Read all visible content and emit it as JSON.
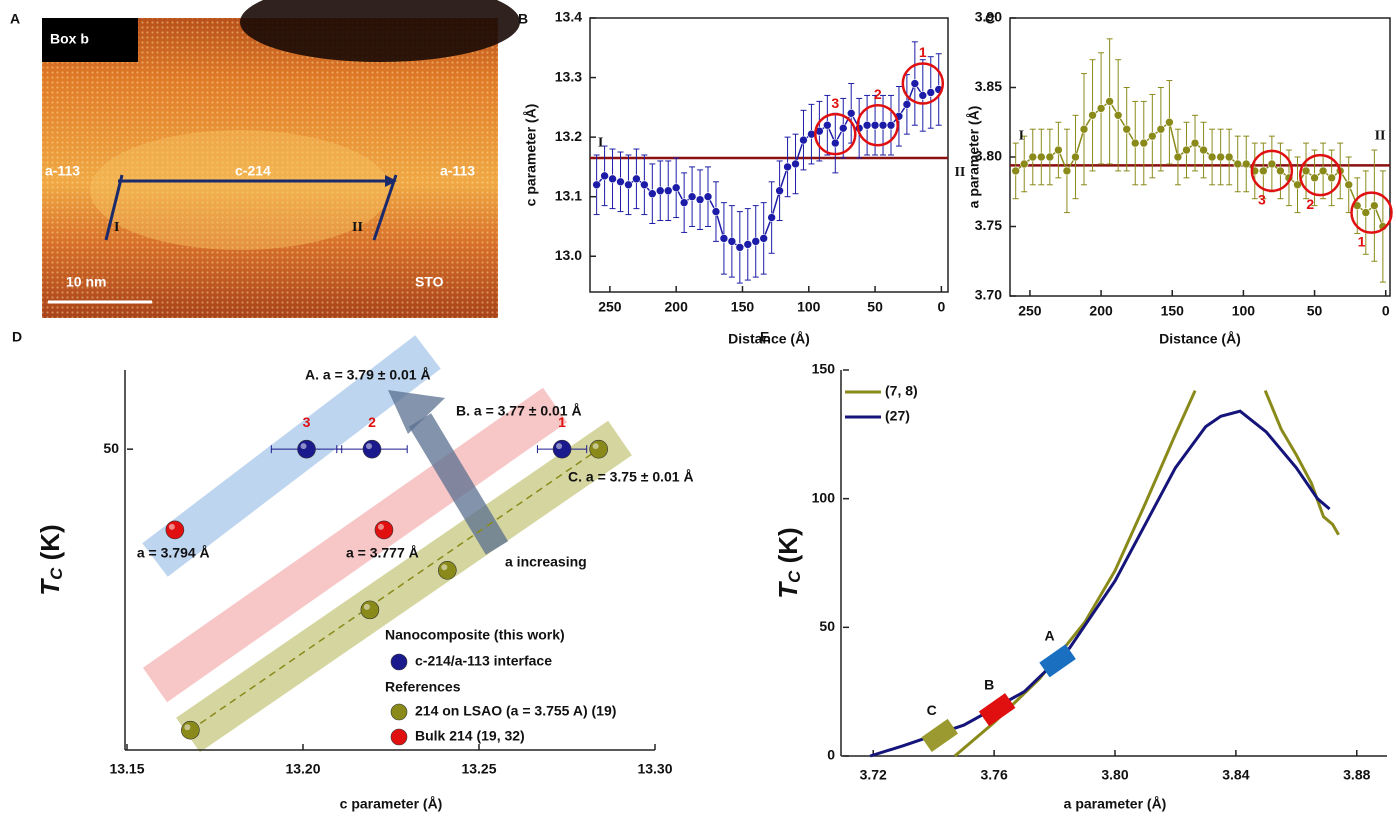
{
  "chart_data": [
    {
      "panel": "A",
      "type": "image",
      "texts": [
        "Box b",
        "a-113",
        "c-214",
        "a-113",
        "I",
        "II",
        "10 nm",
        "STO"
      ]
    },
    {
      "panel": "B",
      "type": "line",
      "xlabel": "Distance (Å)",
      "ylabel": "c parameter (Å)",
      "xlim": [
        265,
        -5
      ],
      "xticks": [
        250,
        200,
        150,
        100,
        50,
        0
      ],
      "ylim": [
        12.94,
        13.4
      ],
      "yticks": [
        {
          "value": 13,
          "label": "13.0"
        },
        13.1,
        13.2,
        13.3,
        13.4
      ],
      "series": [
        {
          "color": "#1c1ca8",
          "x": [
            260,
            254,
            248,
            242,
            236,
            230,
            224,
            218,
            212,
            206,
            200,
            194,
            188,
            182,
            176,
            170,
            164,
            158,
            152,
            146,
            140,
            134,
            128,
            122,
            116,
            110,
            104,
            98,
            92,
            86,
            80,
            74,
            68,
            62,
            56,
            50,
            44,
            38,
            32,
            26,
            20,
            14,
            8,
            2
          ],
          "values": [
            13.12,
            13.135,
            13.13,
            13.125,
            13.12,
            13.13,
            13.12,
            13.105,
            13.11,
            13.11,
            13.115,
            13.09,
            13.1,
            13.095,
            13.1,
            13.075,
            13.03,
            13.025,
            13.015,
            13.02,
            13.025,
            13.03,
            13.065,
            13.11,
            13.15,
            13.155,
            13.195,
            13.205,
            13.21,
            13.22,
            13.19,
            13.215,
            13.24,
            13.215,
            13.22,
            13.22,
            13.22,
            13.22,
            13.235,
            13.255,
            13.29,
            13.27,
            13.275,
            13.28
          ],
          "errors": [
            0.05,
            0.05,
            0.05,
            0.05,
            0.05,
            0.05,
            0.05,
            0.05,
            0.05,
            0.05,
            0.05,
            0.05,
            0.05,
            0.05,
            0.05,
            0.05,
            0.06,
            0.06,
            0.06,
            0.06,
            0.06,
            0.06,
            0.06,
            0.05,
            0.05,
            0.05,
            0.05,
            0.05,
            0.05,
            0.05,
            0.05,
            0.05,
            0.05,
            0.05,
            0.05,
            0.05,
            0.05,
            0.05,
            0.05,
            0.05,
            0.07,
            0.06,
            0.06,
            0.06
          ]
        }
      ],
      "reference_line": {
        "value": 13.165,
        "color": "#8b1010"
      },
      "circle_color": "#e01010",
      "circles": [
        {
          "label": "1",
          "x": 14,
          "y": 13.29
        },
        {
          "label": "2",
          "x": 48,
          "y": 13.22
        },
        {
          "label": "3",
          "x": 80,
          "y": 13.205
        }
      ],
      "labels": [
        {
          "text": "I",
          "x": 257,
          "y": 13.19
        },
        {
          "text": "II",
          "x": -14,
          "y": 13.14
        }
      ]
    },
    {
      "panel": "C",
      "type": "line",
      "xlabel": "Distance (Å)",
      "ylabel": "a parameter (Å)",
      "xlim": [
        264,
        -3
      ],
      "xticks": [
        250,
        200,
        150,
        100,
        50,
        0
      ],
      "ylim": [
        3.7,
        3.9
      ],
      "yticks": [
        {
          "value": 3.7,
          "label": "3.70"
        },
        3.75,
        {
          "value": 3.8,
          "label": "3.80"
        },
        3.85,
        {
          "value": 3.9,
          "label": "3.90"
        }
      ],
      "series": [
        {
          "color": "#8a8a1a",
          "x": [
            260,
            254,
            248,
            242,
            236,
            230,
            224,
            218,
            212,
            206,
            200,
            194,
            188,
            182,
            176,
            170,
            164,
            158,
            152,
            146,
            140,
            134,
            128,
            122,
            116,
            110,
            104,
            98,
            92,
            86,
            80,
            74,
            68,
            62,
            56,
            50,
            44,
            38,
            32,
            26,
            20,
            14,
            8,
            2
          ],
          "values": [
            3.79,
            3.795,
            3.8,
            3.8,
            3.8,
            3.805,
            3.79,
            3.8,
            3.82,
            3.83,
            3.835,
            3.84,
            3.83,
            3.82,
            3.81,
            3.81,
            3.815,
            3.82,
            3.825,
            3.8,
            3.805,
            3.81,
            3.805,
            3.8,
            3.8,
            3.8,
            3.795,
            3.795,
            3.79,
            3.79,
            3.795,
            3.79,
            3.785,
            3.78,
            3.79,
            3.785,
            3.79,
            3.785,
            3.79,
            3.78,
            3.765,
            3.76,
            3.765,
            3.75
          ],
          "errors": [
            0.02,
            0.02,
            0.02,
            0.02,
            0.02,
            0.02,
            0.03,
            0.03,
            0.04,
            0.04,
            0.04,
            0.045,
            0.04,
            0.03,
            0.03,
            0.03,
            0.03,
            0.03,
            0.03,
            0.02,
            0.02,
            0.02,
            0.02,
            0.02,
            0.02,
            0.02,
            0.02,
            0.02,
            0.02,
            0.02,
            0.02,
            0.02,
            0.02,
            0.02,
            0.02,
            0.02,
            0.02,
            0.02,
            0.02,
            0.02,
            0.02,
            0.03,
            0.04,
            0.04
          ]
        }
      ],
      "reference_line": {
        "value": 3.794,
        "color": "#8b1010"
      },
      "circle_color": "#e01010",
      "circles": [
        {
          "label": "1",
          "x": 10,
          "y": 3.76
        },
        {
          "label": "2",
          "x": 46,
          "y": 3.787
        },
        {
          "label": "3",
          "x": 80,
          "y": 3.79
        }
      ],
      "labels": [
        {
          "text": "I",
          "x": 256,
          "y": 3.815
        },
        {
          "text": "II",
          "x": 4,
          "y": 3.815
        }
      ]
    },
    {
      "panel": "D",
      "type": "scatter",
      "xlabel": "c parameter (Å)",
      "ylabel": [
        "T",
        "C",
        " (K)"
      ],
      "xlim": [
        13.15,
        13.3
      ],
      "xticks": [
        13.15,
        {
          "value": 13.2,
          "label": "13.20"
        },
        13.25,
        {
          "value": 13.3,
          "label": "13.30"
        }
      ],
      "ylim": [
        12,
        60
      ],
      "yticks": [
        50
      ],
      "annotations": [
        "A. a = 3.79 ± 0.01 Å",
        "B. a = 3.77 ± 0.01 Å",
        "C. a = 3.75 ± 0.01 Å",
        "a increasing"
      ],
      "legend_groups": [
        "Nanocomposite (this work)",
        "References"
      ],
      "series": [
        {
          "name": "c-214/a-113 interface",
          "color": "#1a1a8c",
          "x": [
            13.201,
            13.2196,
            13.2736
          ],
          "values": [
            50,
            50,
            50
          ],
          "xerr": [
            0.01,
            0.01,
            0.007
          ],
          "point_labels": [
            "3",
            "2",
            "1"
          ]
        },
        {
          "name": "214 on LSAO (a = 3.755 A) (19)",
          "color": "#8a8a1a",
          "x": [
            13.168,
            13.219,
            13.241,
            13.284
          ],
          "values": [
            14.5,
            29.7,
            34.7,
            50
          ]
        },
        {
          "name": "Bulk 214 (19, 32)",
          "color": "#e01010",
          "x": [
            13.1636,
            13.223
          ],
          "values": [
            39.8,
            39.8
          ],
          "point_labels": [
            "a = 3.794 Å",
            "a = 3.777 Å"
          ]
        }
      ]
    },
    {
      "panel": "E",
      "type": "line",
      "xlabel": "a parameter (Å)",
      "ylabel": [
        "T",
        "C",
        " (K)"
      ],
      "xlim": [
        3.71,
        3.89
      ],
      "xticks": [
        3.72,
        3.76,
        {
          "value": 3.8,
          "label": "3.80"
        },
        3.84,
        3.88
      ],
      "ylim": [
        0,
        150
      ],
      "yticks": [
        0,
        50,
        100,
        150
      ],
      "series": [
        {
          "name": "(7, 8)",
          "color": "#8a8a1a",
          "x": [
            3.747,
            3.76,
            3.775,
            3.79,
            3.8,
            3.81,
            3.82,
            3.8265,
            null,
            3.8497,
            3.855,
            3.86,
            3.865,
            3.869,
            3.872,
            3.874
          ],
          "values": [
            0,
            13,
            30,
            52,
            72,
            98,
            125,
            142,
            null,
            142,
            127,
            117,
            106,
            93,
            90,
            86
          ]
        },
        {
          "name": "(27)",
          "color": "#14147a",
          "x": [
            3.719,
            3.73,
            3.75,
            3.77,
            3.785,
            3.8,
            3.81,
            3.82,
            3.83,
            3.835,
            3.8414,
            3.85,
            3.86,
            3.867,
            3.871
          ],
          "values": [
            0,
            4,
            12,
            25,
            42,
            68,
            90,
            112,
            128,
            132,
            134,
            126,
            112,
            100,
            96
          ]
        }
      ],
      "markers": [
        {
          "label": "A",
          "x": 3.781,
          "y": 37,
          "color": "#1a6fc0"
        },
        {
          "label": "B",
          "x": 3.761,
          "y": 18,
          "color": "#e01010"
        },
        {
          "label": "C",
          "x": 3.742,
          "y": 8,
          "color": "#9a9a30"
        }
      ]
    }
  ]
}
